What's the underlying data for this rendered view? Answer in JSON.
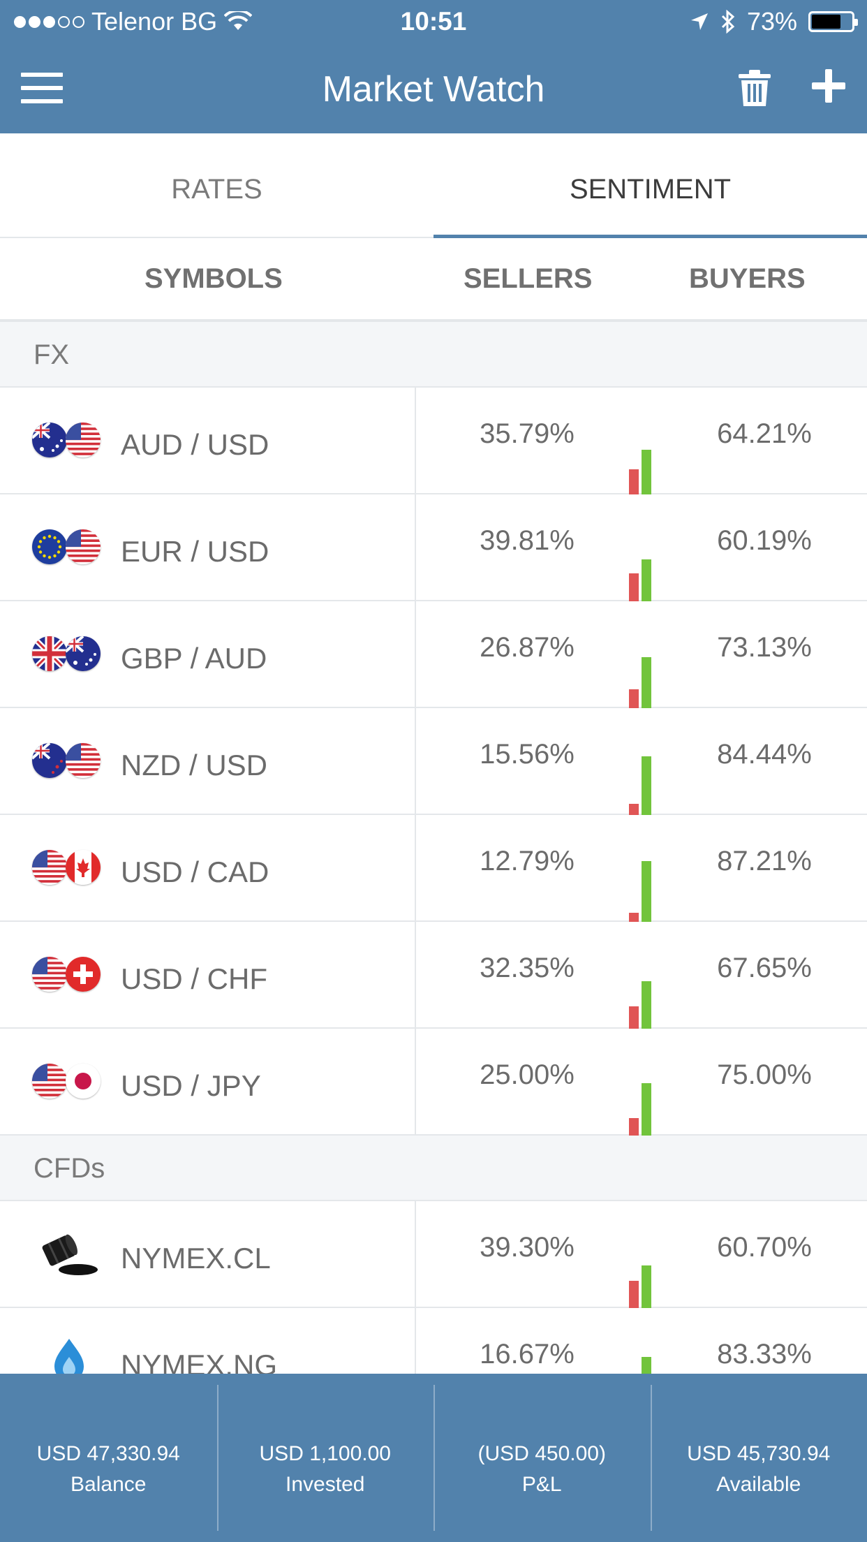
{
  "status_bar": {
    "carrier": "Telenor BG",
    "time": "10:51",
    "battery_percent": "73%",
    "battery_level": 0.73
  },
  "header": {
    "title": "Market Watch"
  },
  "tabs": [
    {
      "label": "RATES",
      "active": false
    },
    {
      "label": "SENTIMENT",
      "active": true
    }
  ],
  "columns": {
    "symbols": "SYMBOLS",
    "sellers": "SELLERS",
    "buyers": "BUYERS"
  },
  "sections": {
    "fx": {
      "title": "FX",
      "rows": [
        {
          "symbol": "AUD / USD",
          "sellers": "35.79%",
          "buyers": "64.21%",
          "sellers_value": 35.79,
          "buyers_value": 64.21,
          "flag1": "au",
          "flag2": "us"
        },
        {
          "symbol": "EUR / USD",
          "sellers": "39.81%",
          "buyers": "60.19%",
          "sellers_value": 39.81,
          "buyers_value": 60.19,
          "flag1": "eu",
          "flag2": "us"
        },
        {
          "symbol": "GBP / AUD",
          "sellers": "26.87%",
          "buyers": "73.13%",
          "sellers_value": 26.87,
          "buyers_value": 73.13,
          "flag1": "gb",
          "flag2": "au"
        },
        {
          "symbol": "NZD / USD",
          "sellers": "15.56%",
          "buyers": "84.44%",
          "sellers_value": 15.56,
          "buyers_value": 84.44,
          "flag1": "nz",
          "flag2": "us"
        },
        {
          "symbol": "USD / CAD",
          "sellers": "12.79%",
          "buyers": "87.21%",
          "sellers_value": 12.79,
          "buyers_value": 87.21,
          "flag1": "us",
          "flag2": "ca"
        },
        {
          "symbol": "USD / CHF",
          "sellers": "32.35%",
          "buyers": "67.65%",
          "sellers_value": 32.35,
          "buyers_value": 67.65,
          "flag1": "us",
          "flag2": "ch"
        },
        {
          "symbol": "USD / JPY",
          "sellers": "25.00%",
          "buyers": "75.00%",
          "sellers_value": 25.0,
          "buyers_value": 75.0,
          "flag1": "us",
          "flag2": "jp"
        }
      ]
    },
    "cfds": {
      "title": "CFDs",
      "rows": [
        {
          "symbol": "NYMEX.CL",
          "sellers": "39.30%",
          "buyers": "60.70%",
          "sellers_value": 39.3,
          "buyers_value": 60.7,
          "icon": "oil-barrel-icon"
        },
        {
          "symbol": "NYMEX.NG",
          "sellers": "16.67%",
          "buyers": "83.33%",
          "sellers_value": 16.67,
          "buyers_value": 83.33,
          "icon": "gas-flame-icon"
        }
      ]
    }
  },
  "colors": {
    "brand": "#5282ac",
    "sellers_bar": "#e05555",
    "buyers_bar": "#72c43c"
  },
  "footer": [
    {
      "value": "USD 47,330.94",
      "label": "Balance"
    },
    {
      "value": "USD 1,100.00",
      "label": "Invested"
    },
    {
      "value": "(USD 450.00)",
      "label": "P&L"
    },
    {
      "value": "USD 45,730.94",
      "label": "Available"
    }
  ]
}
